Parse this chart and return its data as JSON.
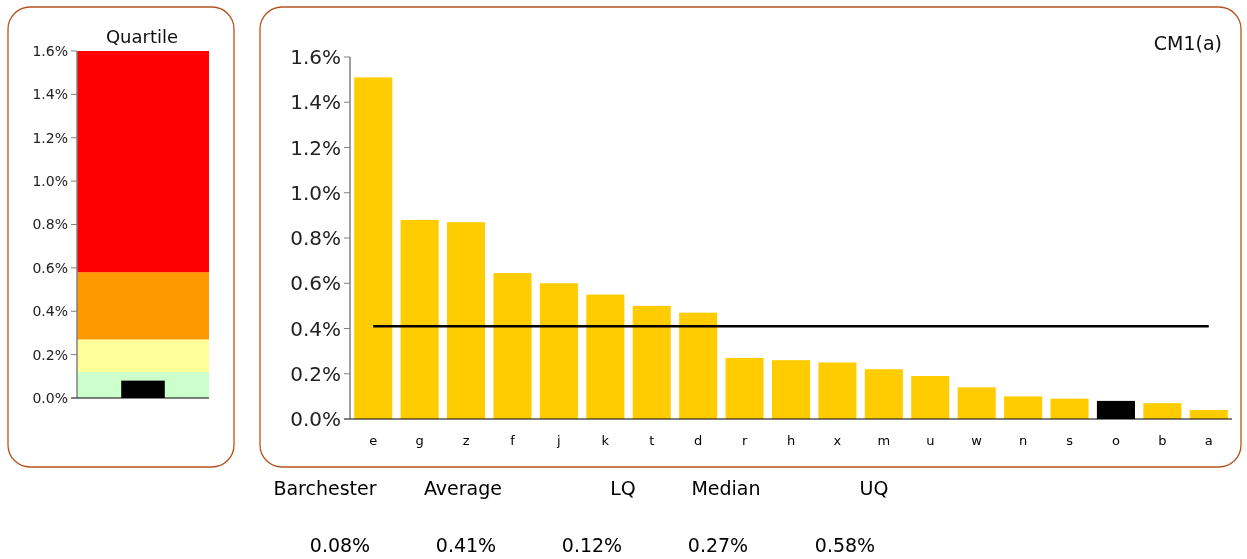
{
  "chart_data": [
    {
      "type": "bar",
      "title": "Quartile",
      "categories": [
        null
      ],
      "values": [
        0.08
      ],
      "color": "#000000",
      "ylim": [
        0,
        1.6
      ],
      "yticks": [
        {
          "value": 0,
          "label": "0.0%"
        },
        {
          "value": 0.2,
          "label": "0.2%"
        },
        {
          "value": 0.4,
          "label": "0.4%"
        },
        {
          "value": 0.6,
          "label": "0.6%"
        },
        {
          "value": 0.8,
          "label": "0.8%"
        },
        {
          "value": 1.0,
          "label": "1.0%"
        },
        {
          "value": 1.2,
          "label": "1.2%"
        },
        {
          "value": 1.4,
          "label": "1.4%"
        },
        {
          "value": 1.6,
          "label": "1.6%"
        }
      ],
      "bands": [
        {
          "axis": "y",
          "from": 0,
          "to": 0.12,
          "color": "#ccffcc"
        },
        {
          "axis": "y",
          "from": 0.12,
          "to": 0.27,
          "color": "#ffff99"
        },
        {
          "axis": "y",
          "from": 0.27,
          "to": 0.58,
          "color": "#ff9900"
        },
        {
          "axis": "y",
          "from": 0.58,
          "to": 1.6,
          "color": "#ff0000"
        }
      ]
    },
    {
      "type": "bar",
      "title": "CM1(a)",
      "categories": [
        "e",
        "g",
        "z",
        "f",
        "j",
        "k",
        "t",
        "d",
        "r",
        "h",
        "x",
        "m",
        "u",
        "w",
        "n",
        "s",
        "o",
        "b",
        "a"
      ],
      "values": [
        1.51,
        0.88,
        0.87,
        0.645,
        0.6,
        0.55,
        0.5,
        0.47,
        0.27,
        0.26,
        0.25,
        0.22,
        0.19,
        0.14,
        0.1,
        0.09,
        0.08,
        0.07,
        0.04
      ],
      "colors": [
        "#ffcc00",
        "#ffcc00",
        "#ffcc00",
        "#ffcc00",
        "#ffcc00",
        "#ffcc00",
        "#ffcc00",
        "#ffcc00",
        "#ffcc00",
        "#ffcc00",
        "#ffcc00",
        "#ffcc00",
        "#ffcc00",
        "#ffcc00",
        "#ffcc00",
        "#ffcc00",
        "#000000",
        "#ffcc00",
        "#ffcc00"
      ],
      "ylim": [
        0,
        1.6
      ],
      "yticks": [
        {
          "value": 0,
          "label": "0.0%"
        },
        {
          "value": 0.2,
          "label": "0.2%"
        },
        {
          "value": 0.4,
          "label": "0.4%"
        },
        {
          "value": 0.6,
          "label": "0.6%"
        },
        {
          "value": 0.8,
          "label": "0.8%"
        },
        {
          "value": 1.0,
          "label": "1.0%"
        },
        {
          "value": 1.2,
          "label": "1.2%"
        },
        {
          "value": 1.4,
          "label": "1.4%"
        },
        {
          "value": 1.6,
          "label": "1.6%"
        }
      ],
      "ref_lines": [
        {
          "axis": "y",
          "value": 0.41,
          "color": "#000000"
        }
      ],
      "annotations": [
        "Barchester",
        "Average",
        "LQ",
        "Median",
        "UQ",
        "0.08%",
        "0.41%",
        "0.12%",
        "0.27%",
        "0.58%"
      ]
    }
  ]
}
